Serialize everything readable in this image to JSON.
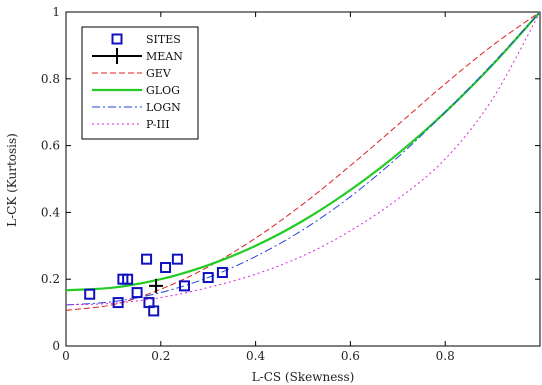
{
  "chart_data": {
    "type": "line",
    "title": "",
    "xlabel": "L-CS (Skewness)",
    "ylabel": "L-CK (Kurtosis)",
    "xlim": [
      0,
      1
    ],
    "ylim": [
      0,
      1
    ],
    "xticks": [
      "0",
      "0.2",
      "0.4",
      "0.6",
      "0.8"
    ],
    "yticks": [
      "0",
      "0.2",
      "0.4",
      "0.6",
      "0.8",
      "1"
    ],
    "grid": false,
    "legend_position": "top-left",
    "series": [
      {
        "name": "SITES",
        "kind": "scatter",
        "color": "#1010c0",
        "marker": "square",
        "points": [
          [
            0.05,
            0.155
          ],
          [
            0.11,
            0.13
          ],
          [
            0.12,
            0.2
          ],
          [
            0.13,
            0.2
          ],
          [
            0.15,
            0.16
          ],
          [
            0.17,
            0.26
          ],
          [
            0.175,
            0.13
          ],
          [
            0.185,
            0.105
          ],
          [
            0.21,
            0.235
          ],
          [
            0.235,
            0.26
          ],
          [
            0.25,
            0.18
          ],
          [
            0.3,
            0.205
          ],
          [
            0.33,
            0.22
          ]
        ]
      },
      {
        "name": "MEAN",
        "kind": "marker",
        "color": "#000000",
        "marker": "plus",
        "points": [
          [
            0.19,
            0.18
          ]
        ]
      },
      {
        "name": "GEV",
        "kind": "line",
        "color": "#dd2222",
        "dash": "dashed",
        "x": [
          0,
          0.1,
          0.2,
          0.3,
          0.4,
          0.5,
          0.6,
          0.7,
          0.8,
          0.9,
          1.0
        ],
        "y": [
          0.107,
          0.124,
          0.17,
          0.237,
          0.323,
          0.425,
          0.54,
          0.662,
          0.785,
          0.9,
          1.0
        ]
      },
      {
        "name": "GLOG",
        "kind": "line",
        "color": "#22cc22",
        "dash": "solid",
        "x": [
          0,
          0.1,
          0.2,
          0.3,
          0.4,
          0.5,
          0.6,
          0.7,
          0.8,
          0.9,
          1.0
        ],
        "y": [
          0.167,
          0.175,
          0.2,
          0.242,
          0.3,
          0.375,
          0.467,
          0.575,
          0.7,
          0.842,
          1.0
        ]
      },
      {
        "name": "LOGN",
        "kind": "line",
        "color": "#2244dd",
        "dash": "dashdot",
        "x": [
          0,
          0.1,
          0.2,
          0.3,
          0.4,
          0.5,
          0.6,
          0.7,
          0.8,
          0.9,
          1.0
        ],
        "y": [
          0.123,
          0.133,
          0.16,
          0.205,
          0.268,
          0.348,
          0.447,
          0.565,
          0.7,
          0.845,
          1.0
        ]
      },
      {
        "name": "P-III",
        "kind": "line",
        "color": "#dd22dd",
        "dash": "dotted",
        "x": [
          0,
          0.1,
          0.2,
          0.3,
          0.4,
          0.5,
          0.6,
          0.7,
          0.8,
          0.9,
          1.0
        ],
        "y": [
          0.123,
          0.128,
          0.145,
          0.175,
          0.215,
          0.27,
          0.345,
          0.44,
          0.56,
          0.74,
          1.0
        ]
      }
    ]
  }
}
